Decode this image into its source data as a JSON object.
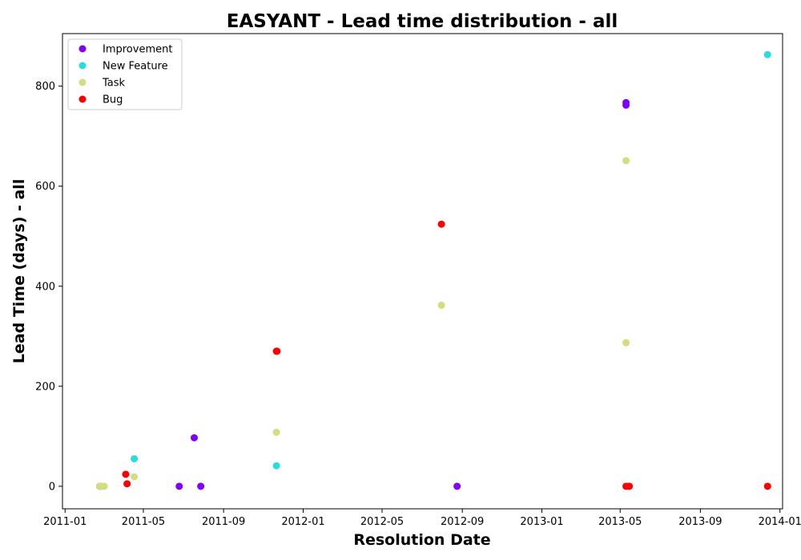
{
  "chart_data": {
    "type": "scatter",
    "title": "EASYANT - Lead time distribution - all",
    "xlabel": "Resolution Date",
    "ylabel": "Lead Time (days) - all",
    "xlim": [
      "2010-12-28",
      "2014-01-05"
    ],
    "ylim": [
      -45,
      905
    ],
    "x_ticks": [
      "2011-01",
      "2011-05",
      "2011-09",
      "2012-01",
      "2012-05",
      "2012-09",
      "2013-01",
      "2013-05",
      "2013-09",
      "2014-01"
    ],
    "y_ticks": [
      0,
      200,
      400,
      600,
      800
    ],
    "legend": {
      "location": "top-left"
    },
    "series": [
      {
        "name": "Improvement",
        "color": "#8000ff",
        "points": [
          {
            "x": "2011-02-23",
            "y": 0
          },
          {
            "x": "2011-02-24",
            "y": 0
          },
          {
            "x": "2011-06-25",
            "y": 0
          },
          {
            "x": "2011-07-18",
            "y": 97
          },
          {
            "x": "2011-07-28",
            "y": 0
          },
          {
            "x": "2012-08-24",
            "y": 0
          },
          {
            "x": "2013-05-10",
            "y": 767
          },
          {
            "x": "2013-05-10",
            "y": 762
          }
        ]
      },
      {
        "name": "New Feature",
        "color": "#2adddd",
        "points": [
          {
            "x": "2011-02-24",
            "y": 0
          },
          {
            "x": "2011-04-17",
            "y": 55
          },
          {
            "x": "2011-11-21",
            "y": 41
          },
          {
            "x": "2013-12-13",
            "y": 863
          }
        ]
      },
      {
        "name": "Task",
        "color": "#d4dd80",
        "points": [
          {
            "x": "2011-02-23",
            "y": 0
          },
          {
            "x": "2011-02-25",
            "y": 0
          },
          {
            "x": "2011-03-02",
            "y": 0
          },
          {
            "x": "2011-04-17",
            "y": 19
          },
          {
            "x": "2011-11-21",
            "y": 108
          },
          {
            "x": "2012-07-31",
            "y": 362
          },
          {
            "x": "2013-05-10",
            "y": 651
          },
          {
            "x": "2013-05-10",
            "y": 287
          }
        ]
      },
      {
        "name": "Bug",
        "color": "#ff0000",
        "points": [
          {
            "x": "2011-04-04",
            "y": 24
          },
          {
            "x": "2011-04-06",
            "y": 5
          },
          {
            "x": "2011-11-21",
            "y": 270
          },
          {
            "x": "2011-11-22",
            "y": 270
          },
          {
            "x": "2012-07-31",
            "y": 524
          },
          {
            "x": "2013-05-10",
            "y": 0
          },
          {
            "x": "2013-05-14",
            "y": 0
          },
          {
            "x": "2013-05-15",
            "y": 0
          },
          {
            "x": "2013-12-13",
            "y": 0
          }
        ]
      }
    ]
  }
}
